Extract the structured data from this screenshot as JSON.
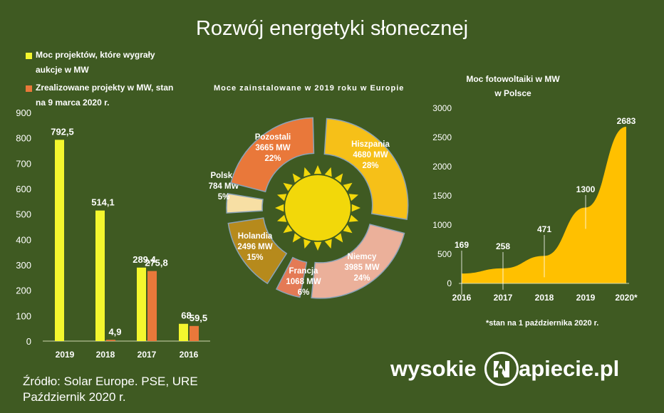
{
  "title": "Rozwój energetyki słonecznej",
  "colors": {
    "background": "#3f5a22",
    "yellow": "#f4f72e",
    "orange": "#e9783a",
    "sun": "#f2d80a",
    "area": "#ffc000",
    "text": "#ffffff"
  },
  "source": {
    "line1": "Źródło: Solar Europe. PSE, URE",
    "line2": "Październik 2020 r."
  },
  "brand": {
    "part1": "wysokie",
    "part2": "apiecie.pl"
  },
  "chart_data": [
    {
      "type": "bar",
      "title": "",
      "categories": [
        "2019",
        "2018",
        "2017",
        "2016"
      ],
      "series": [
        {
          "name": "Moc projektów, które wygrały aukcje w MW",
          "values": [
            792.5,
            514.1,
            289.4,
            68
          ],
          "labels": [
            "792,5",
            "514,1",
            "289,4",
            "68"
          ],
          "color": "#f4f72e"
        },
        {
          "name": "Zrealizowane projekty w MW, stan na 9 marca 2020 r.",
          "values": [
            null,
            4.9,
            275.8,
            59.5
          ],
          "labels": [
            "",
            "4,9",
            "275,8",
            "59,5"
          ],
          "color": "#e9783a"
        }
      ],
      "legend": [
        {
          "line1": "Moc projektów, które wygrały",
          "line2": "aukcje w MW",
          "color": "#f4f72e"
        },
        {
          "line1": "Zrealizowane projekty w MW, stan",
          "line2": "na 9 marca 2020 r.",
          "color": "#e9783a"
        }
      ],
      "ylim": [
        0,
        900
      ],
      "yticks": [
        "0",
        "100",
        "200",
        "300",
        "400",
        "500",
        "600",
        "700",
        "800",
        "900"
      ],
      "grid": false,
      "legend_position": "top-left"
    },
    {
      "type": "pie",
      "title": "Moce zainstalowane w 2019 roku w Europie",
      "slices": [
        {
          "name": "Hiszpania",
          "mw": "4680 MW",
          "pct": "28%",
          "value": 28,
          "color": "#f6c018"
        },
        {
          "name": "Niemcy",
          "mw": "3985 MW",
          "pct": "24%",
          "value": 24,
          "color": "#ebb09a"
        },
        {
          "name": "Francja",
          "mw": "1068 MW",
          "pct": "6%",
          "value": 6,
          "color": "#e47a55"
        },
        {
          "name": "Holandia",
          "mw": "2496 MW",
          "pct": "15%",
          "value": 15,
          "color": "#b68a1c"
        },
        {
          "name": "Polska",
          "mw": "784 MW",
          "pct": "5%",
          "value": 5,
          "color": "#f7dfa4"
        },
        {
          "name": "Pozostali",
          "mw": "3665 MW",
          "pct": "22%",
          "value": 22,
          "color": "#e9783a"
        }
      ]
    },
    {
      "type": "area",
      "title_line1": "Moc fotowoltaiki w MW",
      "title_line2": "w Polsce",
      "categories": [
        "2016",
        "2017",
        "2018",
        "2019",
        "2020*"
      ],
      "values": [
        169,
        258,
        471,
        1300,
        2683
      ],
      "labels": [
        "169",
        "258",
        "471",
        "1300",
        "2683"
      ],
      "ylim": [
        0,
        3000
      ],
      "yticks": [
        "0",
        "500",
        "1000",
        "1500",
        "2000",
        "2500",
        "3000"
      ],
      "footnote": "*stan na 1 października 2020 r.",
      "color": "#ffc000",
      "grid": false
    }
  ]
}
